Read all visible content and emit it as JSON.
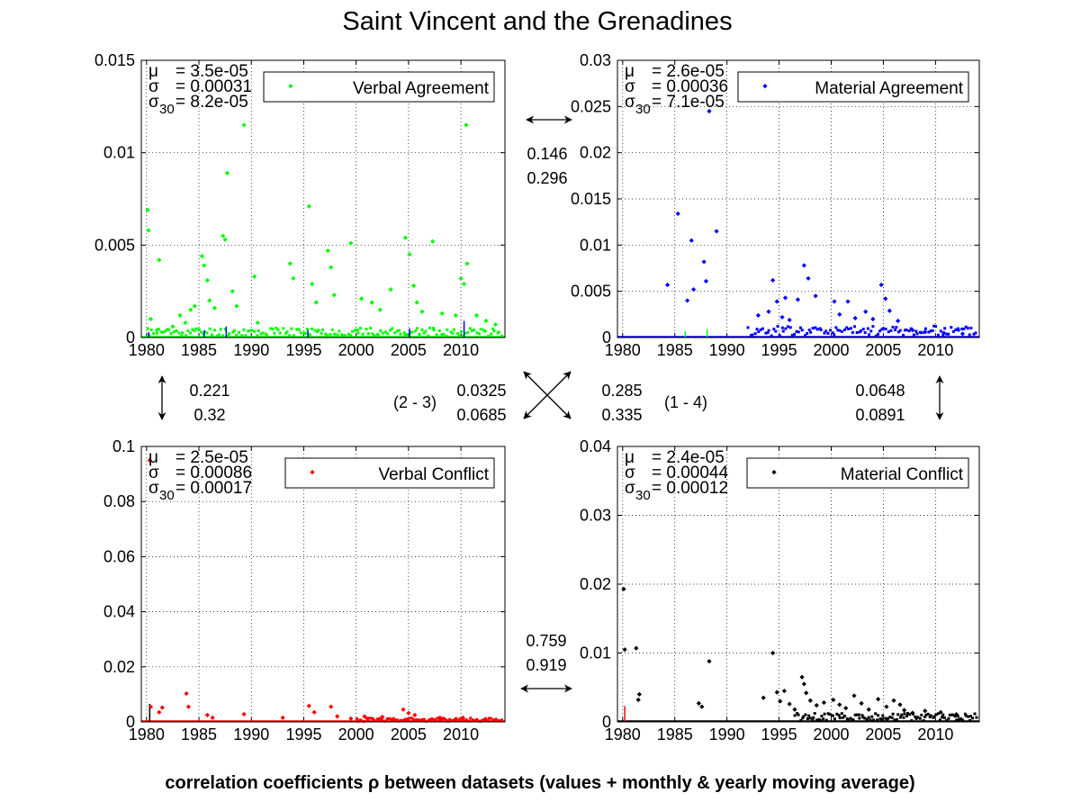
{
  "figure": {
    "title": "Saint Vincent and the Grenadines",
    "footer": "correlation coefficients ρ between datasets (values + monthly & yearly moving average)"
  },
  "chart_data": [
    {
      "type": "scatter",
      "id": "verbal-agreement",
      "legend": "Verbal Agreement",
      "color": "#00ff00",
      "stats": [
        {
          "sym": "μ",
          "sub": "",
          "val": "= 3.5e-05"
        },
        {
          "sym": "σ",
          "sub": "",
          "val": "= 0.00031"
        },
        {
          "sym": "σ",
          "sub": "30",
          "val": "= 8.2e-05"
        }
      ],
      "xlim": [
        1979.5,
        2014.2
      ],
      "ylim": [
        0,
        0.015
      ],
      "xticks": [
        1980,
        1985,
        1990,
        1995,
        2000,
        2005,
        2010
      ],
      "xtick_labels": [
        "1980",
        "1985",
        "1990",
        "1995",
        "2000",
        "2005",
        "2010"
      ],
      "yticks": [
        0,
        0.005,
        0.01,
        0.015
      ],
      "ytick_labels": [
        "0",
        "0.005",
        "0.01",
        "0.015"
      ],
      "grid": true,
      "legend_position": "top-right",
      "overlay_color": "#0000ff",
      "overlay_spikes": [
        [
          1980.2,
          0.0003
        ],
        [
          1985.5,
          0.0004
        ],
        [
          1987.6,
          0.0006
        ],
        [
          1995.4,
          0.0004
        ],
        [
          2005.1,
          0.0005
        ],
        [
          2010.3,
          0.0009
        ]
      ],
      "points": [
        [
          1980.1,
          0.0069
        ],
        [
          1980.2,
          0.0058
        ],
        [
          1980.4,
          0.001
        ],
        [
          1981.2,
          0.0042
        ],
        [
          1981.0,
          0.0004
        ],
        [
          1982.5,
          0.0006
        ],
        [
          1983.2,
          0.0012
        ],
        [
          1983.7,
          0.0008
        ],
        [
          1984.2,
          0.0015
        ],
        [
          1984.6,
          0.0017
        ],
        [
          1985.3,
          0.0044
        ],
        [
          1985.5,
          0.0039
        ],
        [
          1985.8,
          0.0031
        ],
        [
          1986.0,
          0.002
        ],
        [
          1986.5,
          0.0016
        ],
        [
          1987.3,
          0.0055
        ],
        [
          1987.5,
          0.0053
        ],
        [
          1987.7,
          0.0089
        ],
        [
          1988.2,
          0.0025
        ],
        [
          1988.6,
          0.0017
        ],
        [
          1989.3,
          0.0115
        ],
        [
          1990.3,
          0.0033
        ],
        [
          1990.6,
          0.0008
        ],
        [
          1993.7,
          0.004
        ],
        [
          1994.0,
          0.0032
        ],
        [
          1995.5,
          0.0071
        ],
        [
          1995.8,
          0.0029
        ],
        [
          1996.2,
          0.0019
        ],
        [
          1997.3,
          0.0047
        ],
        [
          1997.6,
          0.0038
        ],
        [
          1997.9,
          0.0023
        ],
        [
          1999.5,
          0.0051
        ],
        [
          2000.5,
          0.0021
        ],
        [
          2001.5,
          0.0019
        ],
        [
          2002.3,
          0.0015
        ],
        [
          2003.3,
          0.0026
        ],
        [
          2004.7,
          0.0054
        ],
        [
          2005.1,
          0.0045
        ],
        [
          2005.5,
          0.0028
        ],
        [
          2005.8,
          0.0019
        ],
        [
          2006.3,
          0.0014
        ],
        [
          2007.3,
          0.0052
        ],
        [
          2008.2,
          0.0013
        ],
        [
          2009.5,
          0.0012
        ],
        [
          2010.0,
          0.0032
        ],
        [
          2010.3,
          0.0029
        ],
        [
          2010.5,
          0.0115
        ],
        [
          2010.6,
          0.004
        ],
        [
          2011.5,
          0.0012
        ],
        [
          2012.4,
          0.0009
        ],
        [
          2013.3,
          0.0007
        ]
      ],
      "baseline_start": 1980.0,
      "baseline_end": 2014.0,
      "baseline_level": 0.0005,
      "baseline_density": 160
    },
    {
      "type": "scatter",
      "id": "material-agreement",
      "legend": "Material Agreement",
      "color": "#0000ff",
      "stats": [
        {
          "sym": "μ",
          "sub": "",
          "val": "= 2.6e-05"
        },
        {
          "sym": "σ",
          "sub": "",
          "val": "= 0.00036"
        },
        {
          "sym": "σ",
          "sub": "30",
          "val": "= 7.1e-05"
        }
      ],
      "xlim": [
        1979.5,
        2014.2
      ],
      "ylim": [
        0,
        0.03
      ],
      "xticks": [
        1980,
        1985,
        1990,
        1995,
        2000,
        2005,
        2010
      ],
      "xtick_labels": [
        "1980",
        "1985",
        "1990",
        "1995",
        "2000",
        "2005",
        "2010"
      ],
      "yticks": [
        0,
        0.005,
        0.01,
        0.015,
        0.02,
        0.025,
        0.03
      ],
      "ytick_labels": [
        "0",
        "0.005",
        "0.01",
        "0.015",
        "0.02",
        "0.025",
        "0.03"
      ],
      "grid": true,
      "legend_position": "top-right",
      "overlay_color": "#00ff00",
      "overlay_spikes": [
        [
          1986.0,
          0.0007
        ],
        [
          1988.1,
          0.0009
        ]
      ],
      "points": [
        [
          1984.3,
          0.0057
        ],
        [
          1985.3,
          0.0134
        ],
        [
          1986.2,
          0.004
        ],
        [
          1986.6,
          0.0105
        ],
        [
          1986.8,
          0.0052
        ],
        [
          1987.8,
          0.0082
        ],
        [
          1988.0,
          0.0061
        ],
        [
          1989.0,
          0.0115
        ],
        [
          1988.3,
          0.0245
        ],
        [
          1993.0,
          0.0024
        ],
        [
          1994.0,
          0.0028
        ],
        [
          1994.4,
          0.0062
        ],
        [
          1994.8,
          0.0039
        ],
        [
          1995.3,
          0.0022
        ],
        [
          1995.6,
          0.0043
        ],
        [
          1996.0,
          0.0019
        ],
        [
          1996.8,
          0.0041
        ],
        [
          1997.4,
          0.0078
        ],
        [
          1997.8,
          0.0064
        ],
        [
          1998.5,
          0.0045
        ],
        [
          2000.3,
          0.0039
        ],
        [
          2000.8,
          0.0025
        ],
        [
          2001.6,
          0.0039
        ],
        [
          2002.3,
          0.0021
        ],
        [
          2003.3,
          0.0028
        ],
        [
          2004.0,
          0.002
        ],
        [
          2004.8,
          0.0057
        ],
        [
          2005.2,
          0.0042
        ],
        [
          2005.6,
          0.0029
        ],
        [
          2006.4,
          0.0018
        ],
        [
          2007.8,
          0.0008
        ],
        [
          2009.0,
          0.0006
        ],
        [
          2010.8,
          0.0005
        ],
        [
          2012.6,
          0.0004
        ]
      ],
      "baseline_start": 1992.0,
      "baseline_end": 2014.0,
      "baseline_level": 0.0012,
      "baseline_density": 110
    },
    {
      "type": "scatter",
      "id": "verbal-conflict",
      "legend": "Verbal Conflict",
      "color": "#ff0000",
      "stats": [
        {
          "sym": "μ",
          "sub": "",
          "val": "= 2.5e-05"
        },
        {
          "sym": "σ",
          "sub": "",
          "val": "= 0.00086"
        },
        {
          "sym": "σ",
          "sub": "30",
          "val": "= 0.00017"
        }
      ],
      "xlim": [
        1979.5,
        2014.2
      ],
      "ylim": [
        0,
        0.1
      ],
      "xticks": [
        1980,
        1985,
        1990,
        1995,
        2000,
        2005,
        2010
      ],
      "xtick_labels": [
        "1980",
        "1985",
        "1990",
        "1995",
        "2000",
        "2005",
        "2010"
      ],
      "yticks": [
        0,
        0.02,
        0.04,
        0.06,
        0.08,
        0.1
      ],
      "ytick_labels": [
        "0",
        "0.02",
        "0.04",
        "0.06",
        "0.08",
        "0.1"
      ],
      "grid": true,
      "legend_position": "top-right",
      "overlay_color": "#000000",
      "overlay_spikes": [
        [
          1980.3,
          0.0065
        ]
      ],
      "points": [
        [
          1980.3,
          0.095
        ],
        [
          1980.4,
          0.0055
        ],
        [
          1981.5,
          0.0052
        ],
        [
          1981.2,
          0.0035
        ],
        [
          1983.8,
          0.0103
        ],
        [
          1984.0,
          0.0055
        ],
        [
          1985.8,
          0.0025
        ],
        [
          1986.3,
          0.0015
        ],
        [
          1989.3,
          0.0028
        ],
        [
          1993.0,
          0.0015
        ],
        [
          1995.5,
          0.0058
        ],
        [
          1996.0,
          0.0035
        ],
        [
          1997.6,
          0.0055
        ],
        [
          1998.2,
          0.002
        ],
        [
          1999.5,
          0.0012
        ],
        [
          2000.8,
          0.002
        ],
        [
          2002.5,
          0.0018
        ],
        [
          2004.5,
          0.0045
        ],
        [
          2005.0,
          0.0032
        ],
        [
          2005.6,
          0.0025
        ],
        [
          2008.0,
          0.0015
        ],
        [
          2010.2,
          0.0015
        ],
        [
          2012.3,
          0.001
        ]
      ],
      "baseline_start": 2000.0,
      "baseline_end": 2014.0,
      "baseline_level": 0.0013,
      "baseline_density": 80
    },
    {
      "type": "scatter",
      "id": "material-conflict",
      "legend": "Material Conflict",
      "color": "#000000",
      "stats": [
        {
          "sym": "μ",
          "sub": "",
          "val": "= 2.4e-05"
        },
        {
          "sym": "σ",
          "sub": "",
          "val": "= 0.00044"
        },
        {
          "sym": "σ",
          "sub": "30",
          "val": "= 0.00012"
        }
      ],
      "xlim": [
        1979.5,
        2014.2
      ],
      "ylim": [
        0,
        0.04
      ],
      "xticks": [
        1980,
        1985,
        1990,
        1995,
        2000,
        2005,
        2010
      ],
      "xtick_labels": [
        "1980",
        "1985",
        "1990",
        "1995",
        "2000",
        "2005",
        "2010"
      ],
      "yticks": [
        0,
        0.01,
        0.02,
        0.03,
        0.04
      ],
      "ytick_labels": [
        "0",
        "0.01",
        "0.02",
        "0.03",
        "0.04"
      ],
      "grid": true,
      "legend_position": "top-right",
      "overlay_color": "#ff0000",
      "overlay_spikes": [
        [
          1980.2,
          0.0023
        ]
      ],
      "points": [
        [
          1980.1,
          0.0193
        ],
        [
          1980.2,
          0.0105
        ],
        [
          1981.3,
          0.0107
        ],
        [
          1981.6,
          0.004
        ],
        [
          1981.5,
          0.0032
        ],
        [
          1987.3,
          0.0027
        ],
        [
          1987.6,
          0.0022
        ],
        [
          1988.3,
          0.0088
        ],
        [
          1993.5,
          0.0035
        ],
        [
          1994.4,
          0.01
        ],
        [
          1994.8,
          0.0043
        ],
        [
          1995.1,
          0.003
        ],
        [
          1995.5,
          0.0045
        ],
        [
          1996.0,
          0.0026
        ],
        [
          1996.5,
          0.0018
        ],
        [
          1997.2,
          0.0065
        ],
        [
          1997.4,
          0.0055
        ],
        [
          1997.6,
          0.0042
        ],
        [
          1998.0,
          0.0031
        ],
        [
          1998.6,
          0.0024
        ],
        [
          1999.3,
          0.0028
        ],
        [
          2000.2,
          0.0032
        ],
        [
          2000.8,
          0.0025
        ],
        [
          2001.4,
          0.002
        ],
        [
          2002.2,
          0.0038
        ],
        [
          2002.9,
          0.0027
        ],
        [
          2003.6,
          0.0018
        ],
        [
          2004.5,
          0.0033
        ],
        [
          2005.3,
          0.0022
        ],
        [
          2006.0,
          0.0031
        ],
        [
          2006.6,
          0.0025
        ],
        [
          2007.0,
          0.0017
        ],
        [
          2007.8,
          0.0013
        ],
        [
          2009.0,
          0.0016
        ],
        [
          2010.5,
          0.0014
        ],
        [
          2012.0,
          0.0011
        ]
      ],
      "baseline_start": 1996.5,
      "baseline_end": 2014.0,
      "baseline_level": 0.0012,
      "baseline_density": 110
    }
  ],
  "correlations": {
    "top": [
      "0.146",
      "0.296"
    ],
    "left": [
      "0.221",
      "0.32"
    ],
    "right": [
      "0.0648",
      "0.0891"
    ],
    "bottom": [
      "0.759",
      "0.919"
    ],
    "diag_23": [
      "0.0325",
      "0.0685"
    ],
    "diag_14": [
      "0.285",
      "0.335"
    ],
    "label_23": "(2 - 3)",
    "label_14": "(1 - 4)"
  }
}
